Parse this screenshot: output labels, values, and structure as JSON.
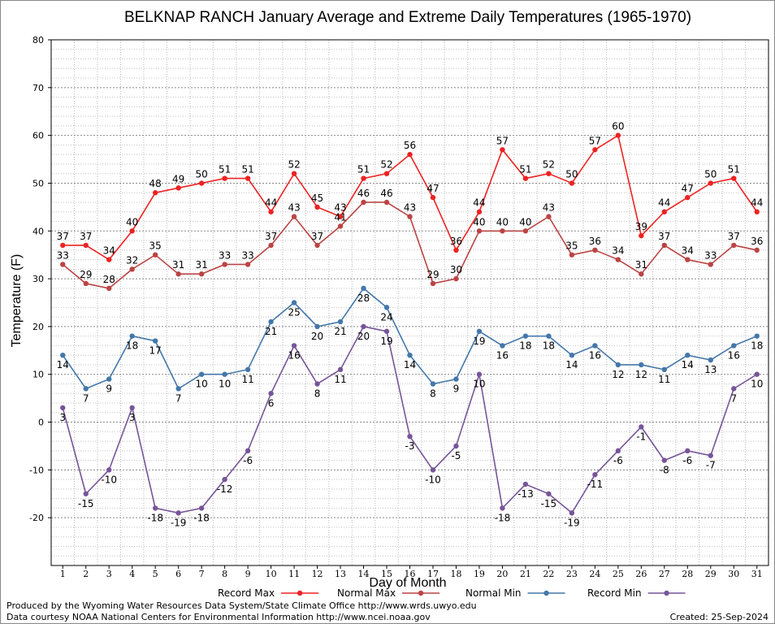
{
  "chart_data": {
    "type": "line",
    "title": "BELKNAP RANCH January Average and Extreme Daily Temperatures (1965-1970)",
    "xlabel": "Day of Month",
    "ylabel": "Temperature (F)",
    "ylim": [
      -30,
      80
    ],
    "yticks": [
      -20,
      -10,
      0,
      10,
      20,
      30,
      40,
      50,
      60,
      70,
      80
    ],
    "grid": true,
    "legend_position": "bottom",
    "x": [
      1,
      2,
      3,
      4,
      5,
      6,
      7,
      8,
      9,
      10,
      11,
      12,
      13,
      14,
      15,
      16,
      17,
      18,
      19,
      20,
      21,
      22,
      23,
      24,
      25,
      26,
      27,
      28,
      29,
      30,
      31
    ],
    "series": [
      {
        "name": "Record Max",
        "color": "#ee2222",
        "label_side": "above",
        "values": [
          37,
          37,
          34,
          40,
          48,
          49,
          50,
          51,
          51,
          44,
          52,
          45,
          43,
          51,
          52,
          56,
          47,
          36,
          44,
          57,
          51,
          52,
          50,
          57,
          60,
          39,
          44,
          47,
          50,
          51,
          44
        ]
      },
      {
        "name": "Normal Max",
        "color": "#bb4444",
        "label_side": "above",
        "values": [
          33,
          29,
          28,
          32,
          35,
          31,
          31,
          33,
          33,
          37,
          43,
          37,
          41,
          46,
          46,
          43,
          29,
          30,
          40,
          40,
          40,
          43,
          35,
          36,
          34,
          31,
          37,
          34,
          33,
          37,
          36
        ]
      },
      {
        "name": "Normal Min",
        "color": "#4477aa",
        "label_side": "below",
        "values": [
          14,
          7,
          9,
          18,
          17,
          7,
          10,
          10,
          11,
          21,
          25,
          20,
          21,
          28,
          24,
          14,
          8,
          9,
          19,
          16,
          18,
          18,
          14,
          16,
          12,
          12,
          11,
          14,
          13,
          16,
          18
        ]
      },
      {
        "name": "Record Min",
        "color": "#775599",
        "label_side": "below",
        "values": [
          3,
          -15,
          -10,
          3,
          -18,
          -19,
          -18,
          -12,
          -6,
          6,
          16,
          8,
          11,
          20,
          19,
          -3,
          -10,
          -5,
          10,
          -18,
          -13,
          -15,
          -19,
          -11,
          -6,
          -1,
          -8,
          -6,
          -7,
          7,
          10
        ]
      }
    ]
  },
  "credits": {
    "produced_by": "Produced by the Wyoming Water Resources Data System/State Climate Office http://www.wrds.uwyo.edu",
    "courtesy": "Data courtesy NOAA National Centers for Environmental Information http://www.ncei.noaa.gov",
    "created": "Created: 25-Sep-2024"
  }
}
